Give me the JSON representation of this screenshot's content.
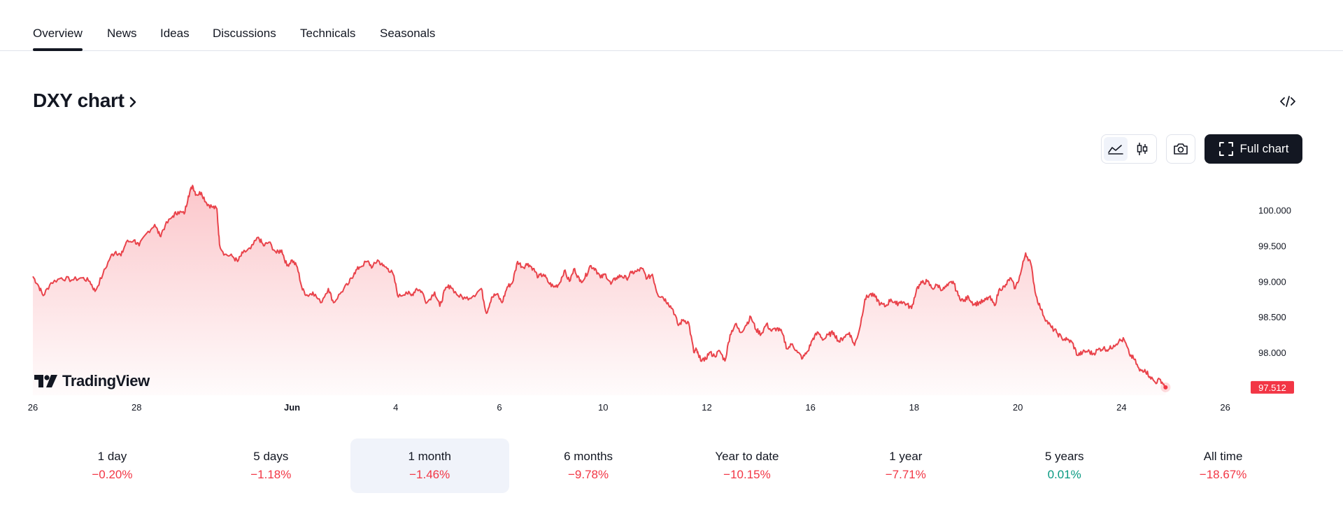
{
  "tabs": [
    {
      "label": "Overview",
      "active": true
    },
    {
      "label": "News"
    },
    {
      "label": "Ideas"
    },
    {
      "label": "Discussions"
    },
    {
      "label": "Technicals"
    },
    {
      "label": "Seasonals"
    }
  ],
  "header": {
    "title": "DXY chart"
  },
  "toolbar": {
    "full_chart_label": "Full chart",
    "active_style": "line"
  },
  "icons": [
    "chevron-right-icon",
    "embed-code-icon",
    "area-chart-icon",
    "candles-icon",
    "camera-icon",
    "fullscreen-icon",
    "tradingview-logo"
  ],
  "logo": {
    "text": "TradingView"
  },
  "colors": {
    "line": "#e9434b",
    "fill": "#f23645",
    "negative": "#f23645",
    "positive": "#089981",
    "price_tag": "#f23645"
  },
  "chart_data": {
    "type": "area",
    "symbol": "DXY",
    "y_ticks": [
      "100.000",
      "99.500",
      "99.000",
      "98.500",
      "98.000"
    ],
    "ylim": [
      97.4,
      100.4
    ],
    "x_ticks": [
      {
        "label": "26",
        "i": 0
      },
      {
        "label": "28",
        "i": 2
      },
      {
        "label": "Jun",
        "i": 5,
        "bold": true
      },
      {
        "label": "4",
        "i": 7
      },
      {
        "label": "6",
        "i": 9
      },
      {
        "label": "10",
        "i": 11
      },
      {
        "label": "12",
        "i": 13
      },
      {
        "label": "16",
        "i": 15
      },
      {
        "label": "18",
        "i": 17
      },
      {
        "label": "20",
        "i": 19
      },
      {
        "label": "24",
        "i": 21
      },
      {
        "label": "26",
        "i": 23
      }
    ],
    "x_span": 23.1,
    "last_price": "97.512",
    "series": [
      [
        0,
        99.07
      ],
      [
        0.1,
        98.95
      ],
      [
        0.2,
        98.8
      ],
      [
        0.35,
        98.98
      ],
      [
        0.55,
        99.05
      ],
      [
        0.75,
        99.02
      ],
      [
        0.95,
        99.05
      ],
      [
        1.1,
        99.0
      ],
      [
        1.2,
        98.86
      ],
      [
        1.35,
        99.1
      ],
      [
        1.5,
        99.35
      ],
      [
        1.6,
        99.42
      ],
      [
        1.7,
        99.36
      ],
      [
        1.8,
        99.55
      ],
      [
        1.95,
        99.58
      ],
      [
        2.05,
        99.5
      ],
      [
        2.2,
        99.68
      ],
      [
        2.35,
        99.8
      ],
      [
        2.45,
        99.64
      ],
      [
        2.55,
        99.78
      ],
      [
        2.7,
        99.92
      ],
      [
        2.8,
        99.98
      ],
      [
        2.92,
        99.95
      ],
      [
        3.0,
        100.2
      ],
      [
        3.08,
        100.35
      ],
      [
        3.15,
        100.22
      ],
      [
        3.25,
        100.25
      ],
      [
        3.35,
        100.1
      ],
      [
        3.45,
        100.05
      ],
      [
        3.55,
        100.02
      ],
      [
        3.6,
        99.52
      ],
      [
        3.7,
        99.38
      ],
      [
        3.85,
        99.35
      ],
      [
        3.95,
        99.28
      ],
      [
        4.05,
        99.4
      ],
      [
        4.2,
        99.46
      ],
      [
        4.35,
        99.62
      ],
      [
        4.45,
        99.5
      ],
      [
        4.55,
        99.55
      ],
      [
        4.7,
        99.4
      ],
      [
        4.8,
        99.44
      ],
      [
        4.9,
        99.22
      ],
      [
        5.0,
        99.3
      ],
      [
        5.1,
        99.2
      ],
      [
        5.2,
        98.88
      ],
      [
        5.3,
        98.8
      ],
      [
        5.4,
        98.85
      ],
      [
        5.55,
        98.7
      ],
      [
        5.7,
        98.9
      ],
      [
        5.8,
        98.7
      ],
      [
        5.95,
        98.85
      ],
      [
        6.1,
        98.98
      ],
      [
        6.2,
        99.12
      ],
      [
        6.3,
        99.2
      ],
      [
        6.45,
        99.28
      ],
      [
        6.55,
        99.2
      ],
      [
        6.65,
        99.3
      ],
      [
        6.75,
        99.22
      ],
      [
        6.85,
        99.18
      ],
      [
        6.95,
        99.1
      ],
      [
        7.05,
        98.78
      ],
      [
        7.2,
        98.85
      ],
      [
        7.3,
        98.8
      ],
      [
        7.4,
        98.9
      ],
      [
        7.5,
        98.86
      ],
      [
        7.6,
        98.7
      ],
      [
        7.75,
        98.85
      ],
      [
        7.85,
        98.65
      ],
      [
        7.95,
        98.88
      ],
      [
        8.05,
        98.94
      ],
      [
        8.2,
        98.8
      ],
      [
        8.35,
        98.76
      ],
      [
        8.5,
        98.8
      ],
      [
        8.65,
        98.9
      ],
      [
        8.75,
        98.55
      ],
      [
        8.85,
        98.78
      ],
      [
        8.95,
        98.82
      ],
      [
        9.05,
        98.7
      ],
      [
        9.15,
        98.92
      ],
      [
        9.25,
        98.98
      ],
      [
        9.35,
        99.28
      ],
      [
        9.45,
        99.2
      ],
      [
        9.55,
        99.25
      ],
      [
        9.65,
        99.18
      ],
      [
        9.75,
        99.06
      ],
      [
        9.85,
        99.1
      ],
      [
        9.95,
        98.98
      ],
      [
        10.05,
        98.92
      ],
      [
        10.15,
        98.96
      ],
      [
        10.25,
        99.15
      ],
      [
        10.35,
        99.0
      ],
      [
        10.45,
        99.18
      ],
      [
        10.55,
        99.0
      ],
      [
        10.65,
        99.05
      ],
      [
        10.75,
        99.22
      ],
      [
        10.85,
        99.18
      ],
      [
        10.95,
        99.05
      ],
      [
        11.05,
        99.1
      ],
      [
        11.15,
        98.96
      ],
      [
        11.25,
        99.05
      ],
      [
        11.35,
        99.08
      ],
      [
        11.45,
        99.04
      ],
      [
        11.55,
        99.12
      ],
      [
        11.65,
        99.14
      ],
      [
        11.75,
        99.18
      ],
      [
        11.85,
        99.04
      ],
      [
        11.95,
        99.1
      ],
      [
        12.05,
        98.82
      ],
      [
        12.15,
        98.78
      ],
      [
        12.25,
        98.7
      ],
      [
        12.35,
        98.6
      ],
      [
        12.45,
        98.38
      ],
      [
        12.55,
        98.46
      ],
      [
        12.65,
        98.42
      ],
      [
        12.75,
        98.0
      ],
      [
        12.8,
        98.04
      ],
      [
        12.85,
        97.93
      ],
      [
        12.95,
        97.88
      ],
      [
        13.05,
        98.0
      ],
      [
        13.15,
        97.95
      ],
      [
        13.25,
        98.02
      ],
      [
        13.35,
        97.88
      ],
      [
        13.45,
        98.25
      ],
      [
        13.55,
        98.4
      ],
      [
        13.65,
        98.28
      ],
      [
        13.75,
        98.38
      ],
      [
        13.85,
        98.5
      ],
      [
        13.95,
        98.32
      ],
      [
        14.05,
        98.26
      ],
      [
        14.15,
        98.4
      ],
      [
        14.25,
        98.3
      ],
      [
        14.35,
        98.34
      ],
      [
        14.45,
        98.28
      ],
      [
        14.55,
        98.05
      ],
      [
        14.65,
        98.12
      ],
      [
        14.75,
        98.0
      ],
      [
        14.85,
        97.92
      ],
      [
        14.95,
        98.02
      ],
      [
        15.05,
        98.2
      ],
      [
        15.15,
        98.28
      ],
      [
        15.25,
        98.18
      ],
      [
        15.35,
        98.25
      ],
      [
        15.45,
        98.28
      ],
      [
        15.55,
        98.15
      ],
      [
        15.65,
        98.22
      ],
      [
        15.75,
        98.28
      ],
      [
        15.85,
        98.1
      ],
      [
        15.95,
        98.34
      ],
      [
        16.05,
        98.75
      ],
      [
        16.15,
        98.82
      ],
      [
        16.25,
        98.78
      ],
      [
        16.35,
        98.68
      ],
      [
        16.45,
        98.65
      ],
      [
        16.55,
        98.75
      ],
      [
        16.65,
        98.68
      ],
      [
        16.75,
        98.72
      ],
      [
        16.85,
        98.68
      ],
      [
        16.95,
        98.62
      ],
      [
        17.05,
        98.9
      ],
      [
        17.15,
        98.98
      ],
      [
        17.25,
        99.0
      ],
      [
        17.35,
        98.9
      ],
      [
        17.45,
        98.95
      ],
      [
        17.55,
        98.88
      ],
      [
        17.65,
        98.94
      ],
      [
        17.75,
        99.0
      ],
      [
        17.85,
        98.8
      ],
      [
        17.95,
        98.72
      ],
      [
        18.05,
        98.78
      ],
      [
        18.15,
        98.68
      ],
      [
        18.25,
        98.7
      ],
      [
        18.35,
        98.72
      ],
      [
        18.45,
        98.78
      ],
      [
        18.55,
        98.66
      ],
      [
        18.65,
        98.9
      ],
      [
        18.75,
        98.92
      ],
      [
        18.85,
        99.05
      ],
      [
        18.95,
        98.9
      ],
      [
        19.05,
        99.1
      ],
      [
        19.15,
        99.4
      ],
      [
        19.25,
        99.25
      ],
      [
        19.35,
        98.8
      ],
      [
        19.45,
        98.6
      ],
      [
        19.55,
        98.45
      ],
      [
        19.65,
        98.35
      ],
      [
        19.75,
        98.28
      ],
      [
        19.85,
        98.2
      ],
      [
        19.95,
        98.18
      ],
      [
        20.05,
        98.14
      ],
      [
        20.15,
        97.96
      ],
      [
        20.25,
        98.0
      ],
      [
        20.35,
        98.02
      ],
      [
        20.45,
        97.98
      ],
      [
        20.55,
        98.04
      ],
      [
        20.65,
        98.06
      ],
      [
        20.75,
        98.04
      ],
      [
        20.85,
        98.1
      ],
      [
        20.95,
        98.16
      ],
      [
        21.05,
        98.18
      ],
      [
        21.15,
        97.98
      ],
      [
        21.25,
        97.9
      ],
      [
        21.35,
        97.74
      ],
      [
        21.45,
        97.76
      ],
      [
        21.55,
        97.66
      ],
      [
        21.65,
        97.58
      ],
      [
        21.75,
        97.62
      ],
      [
        21.85,
        97.51
      ]
    ]
  },
  "ranges": [
    {
      "label": "1 day",
      "value": "−0.20%",
      "dir": "neg"
    },
    {
      "label": "5 days",
      "value": "−1.18%",
      "dir": "neg"
    },
    {
      "label": "1 month",
      "value": "−1.46%",
      "dir": "neg",
      "active": true
    },
    {
      "label": "6 months",
      "value": "−9.78%",
      "dir": "neg"
    },
    {
      "label": "Year to date",
      "value": "−10.15%",
      "dir": "neg"
    },
    {
      "label": "1 year",
      "value": "−7.71%",
      "dir": "neg"
    },
    {
      "label": "5 years",
      "value": "0.01%",
      "dir": "pos"
    },
    {
      "label": "All time",
      "value": "−18.67%",
      "dir": "neg"
    }
  ]
}
